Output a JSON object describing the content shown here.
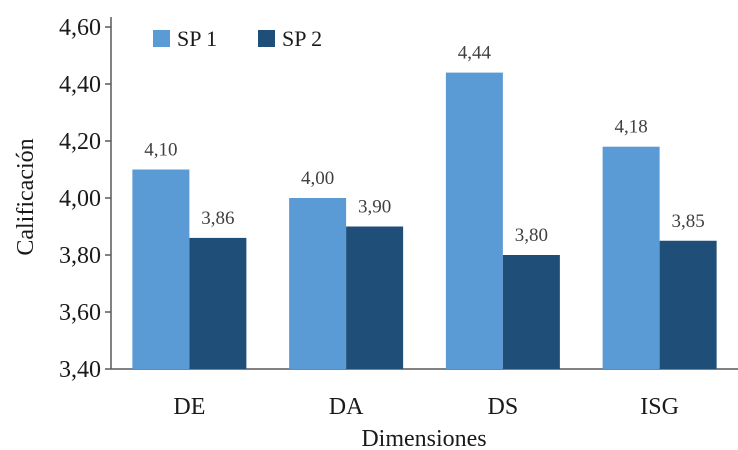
{
  "chart_data": {
    "type": "bar",
    "title": "",
    "xlabel": "Dimensiones",
    "ylabel": "Calificación",
    "categories": [
      "DE",
      "DA",
      "DS",
      "ISG"
    ],
    "series": [
      {
        "name": "SP 1",
        "values": [
          4.1,
          4.0,
          4.44,
          4.18
        ],
        "labels": [
          "4,10",
          "4,00",
          "4,44",
          "4,18"
        ],
        "color": "#5b9bd5"
      },
      {
        "name": "SP 2",
        "values": [
          3.86,
          3.9,
          3.8,
          3.85
        ],
        "labels": [
          "3,86",
          "3,90",
          "3,80",
          "3,85"
        ],
        "color": "#1f4e79"
      }
    ],
    "ylim": [
      3.4,
      4.6
    ],
    "yticks": [
      3.4,
      3.6,
      3.8,
      4.0,
      4.2,
      4.4,
      4.6
    ],
    "ytick_labels": [
      "3,40",
      "3,60",
      "3,80",
      "4,00",
      "4,20",
      "4,40",
      "4,60"
    ],
    "grid": false,
    "legend": "top-left"
  }
}
